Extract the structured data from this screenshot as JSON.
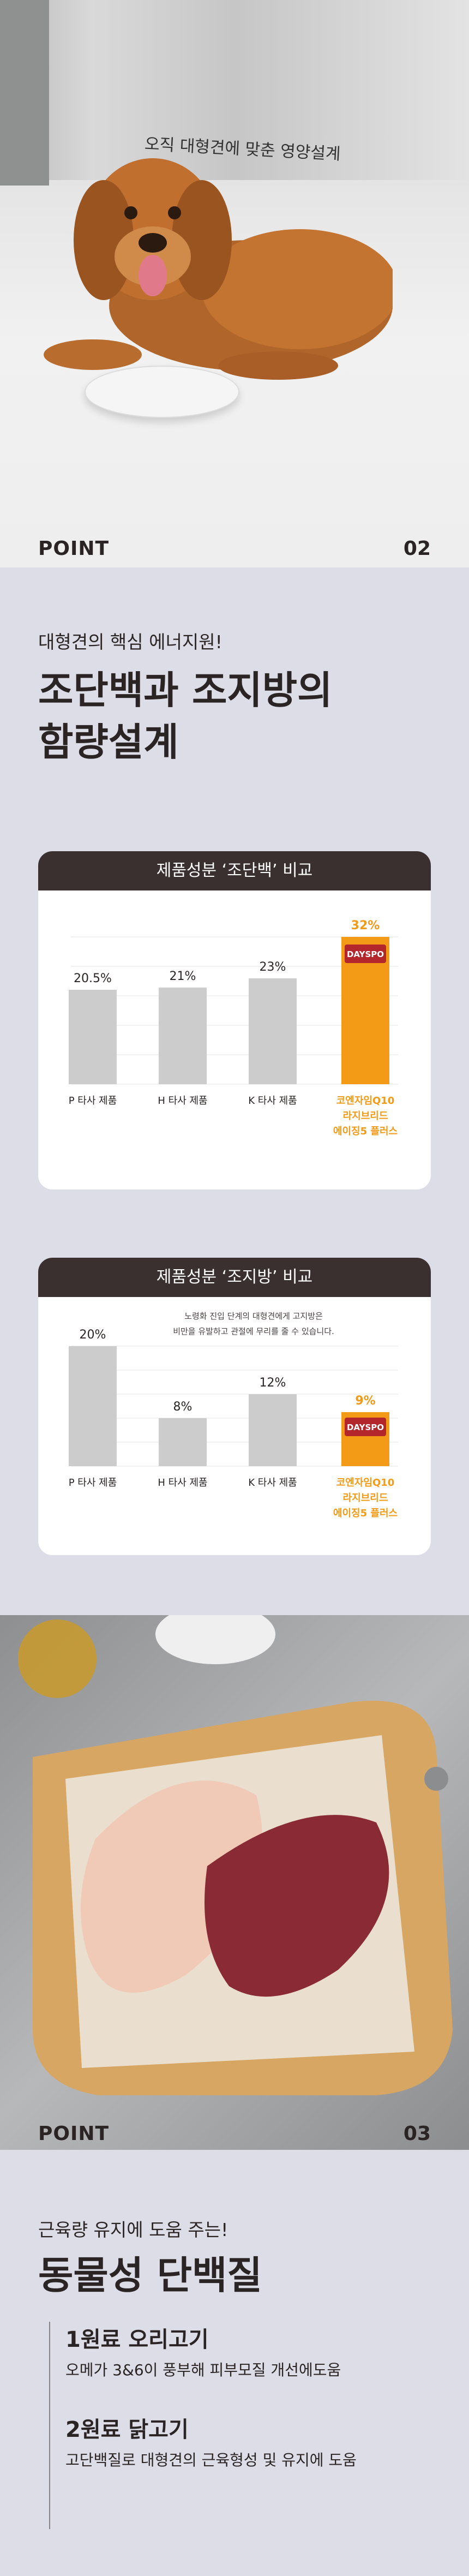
{
  "hero": {
    "tagline": "오직 대형견에 맞춘 영양설계"
  },
  "point1": {
    "label": "POINT",
    "number": "02"
  },
  "section1": {
    "subtitle": "대형견의 핵심 에너지원!",
    "title_line1": "조단백과 조지방의",
    "title_line2": "함량설계"
  },
  "protein_card": {
    "title": "제품성분 ‘조단백’ 비교"
  },
  "fat_card": {
    "title": "제품성분 ‘조지방’ 비교",
    "note_line1": "노령화 진입 단계의 대형견에게 고지방은",
    "note_line2": "비만을 유발하고 관절에 무리를 줄 수 있습니다."
  },
  "brand_badge": "DAYSPO",
  "chart_data": [
    {
      "type": "bar",
      "title": "제품성분 ‘조단백’ 비교",
      "categories": [
        "P 타사 제품",
        "H 타사 제품",
        "K 타사 제품",
        "코엔자임Q10 라지브리드 에이징5 플러스"
      ],
      "values": [
        20.5,
        21,
        23,
        32
      ],
      "value_labels": [
        "20.5%",
        "21%",
        "23%",
        "32%"
      ],
      "highlight_index": 3,
      "colors": {
        "normal": "#cccccc",
        "highlight": "#f39a16"
      },
      "ylim": [
        0,
        32
      ]
    },
    {
      "type": "bar",
      "title": "제품성분 ‘조지방’ 비교",
      "categories": [
        "P 타사 제품",
        "H 타사 제품",
        "K 타사 제품",
        "코엔자임Q10 라지브리드 에이징5 플러스"
      ],
      "values": [
        20,
        8,
        12,
        9
      ],
      "value_labels": [
        "20%",
        "8%",
        "12%",
        "9%"
      ],
      "highlight_index": 3,
      "colors": {
        "normal": "#cccccc",
        "highlight": "#f39a16"
      },
      "ylim": [
        0,
        20
      ]
    }
  ],
  "point2": {
    "label": "POINT",
    "number": "03"
  },
  "section2": {
    "subtitle": "근육량 유지에 도움 주는!",
    "title": "동물성 단백질",
    "items": [
      {
        "title": "1원료 오리고기",
        "desc": "오메가 3&6이 풍부해 피부모질 개선에도움"
      },
      {
        "title": "2원료 닭고기",
        "desc": "고단백질로 대형견의 근육형성 및 유지에 도움"
      }
    ]
  },
  "colors": {
    "accent": "#f39a16",
    "dark": "#3b3030",
    "bg": "#dcdde6"
  }
}
